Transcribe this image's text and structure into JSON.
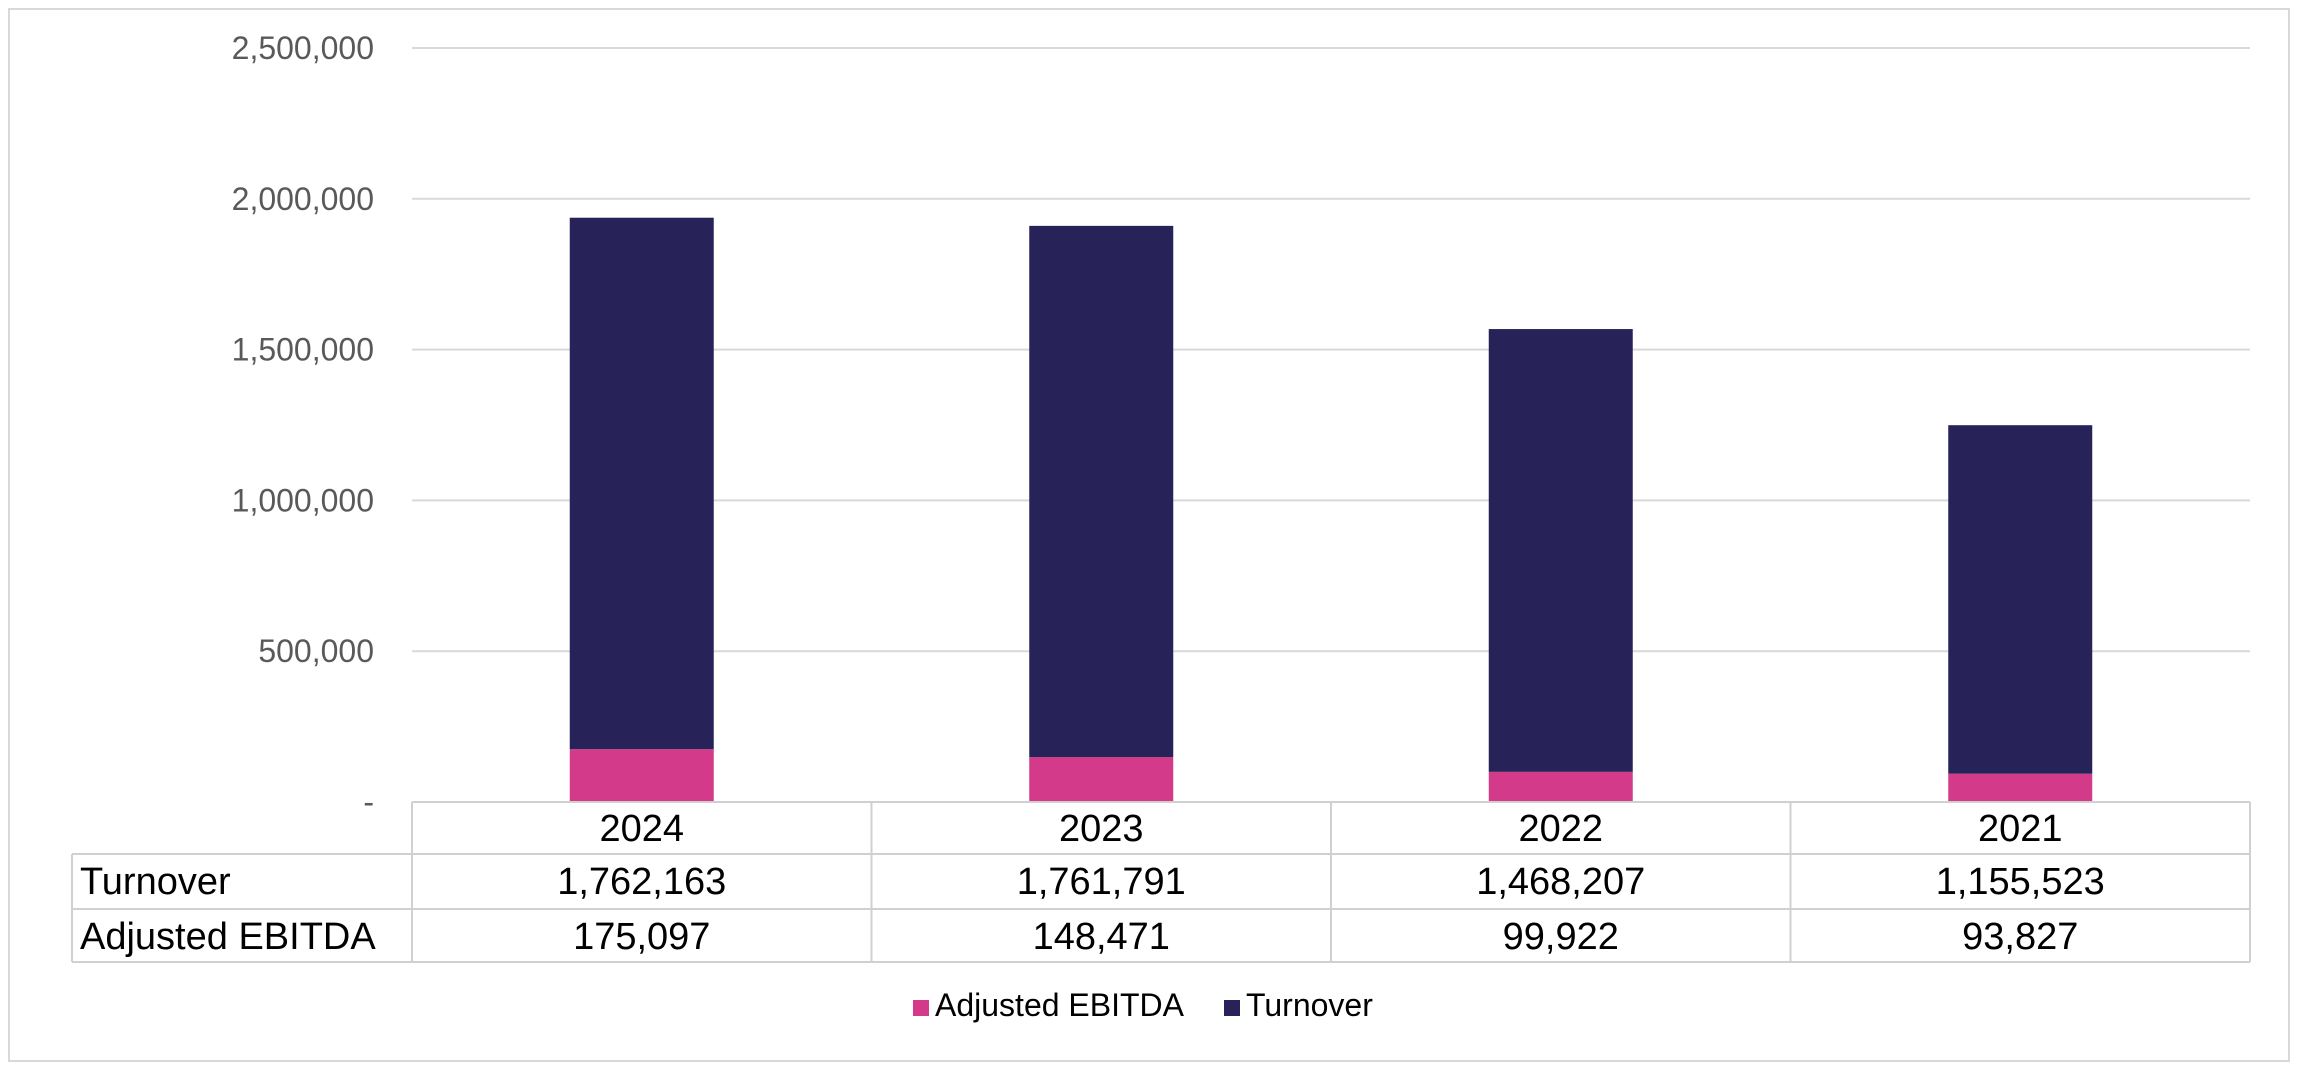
{
  "chart_data": {
    "type": "bar",
    "stacked": true,
    "categories": [
      "2024",
      "2023",
      "2022",
      "2021"
    ],
    "series": [
      {
        "name": "Adjusted EBITDA",
        "values": [
          175097,
          148471,
          99922,
          93827
        ],
        "color": "#d33a8a"
      },
      {
        "name": "Turnover",
        "values": [
          1762163,
          1761791,
          1468207,
          1155523
        ],
        "color": "#272258"
      }
    ],
    "ylim": [
      0,
      2500000
    ],
    "yticks": [
      0,
      500000,
      1000000,
      1500000,
      2000000,
      2500000
    ],
    "ytick_labels": [
      "-",
      "500,000",
      "1,000,000",
      "1,500,000",
      "2,000,000",
      "2,500,000"
    ],
    "table_rows": [
      {
        "label": "Turnover",
        "values": [
          "1,762,163",
          "1,761,791",
          "1,468,207",
          "1,155,523"
        ]
      },
      {
        "label": "Adjusted EBITDA",
        "values": [
          "175,097",
          "148,471",
          "99,922",
          "93,827"
        ]
      }
    ],
    "legend": {
      "position": "bottom",
      "entries": [
        {
          "label": "Adjusted EBITDA",
          "color": "#d33a8a"
        },
        {
          "label": "Turnover",
          "color": "#272258"
        }
      ]
    },
    "grid": true,
    "title": "",
    "xlabel": "",
    "ylabel": ""
  }
}
